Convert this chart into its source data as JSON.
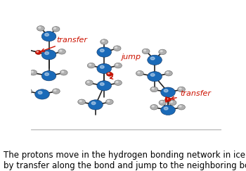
{
  "bg_color": "#ffffff",
  "blue_color": "#1a6ab8",
  "blue_edge": "#0a3060",
  "gray_color": "#b0b0b0",
  "gray_edge": "#606060",
  "red_color": "#cc1100",
  "red_edge": "#881100",
  "bond_color": "#222222",
  "text_color": "#000000",
  "caption_line1": "The protons move in the hydrogen bonding network in ice",
  "caption_line2": "by transfer along the bond and jump to the neighboring bond.",
  "caption_fontsize": 8.5,
  "blue_r": 0.038,
  "gray_r": 0.02,
  "red_r": 0.016,
  "bond_lw": 1.2
}
